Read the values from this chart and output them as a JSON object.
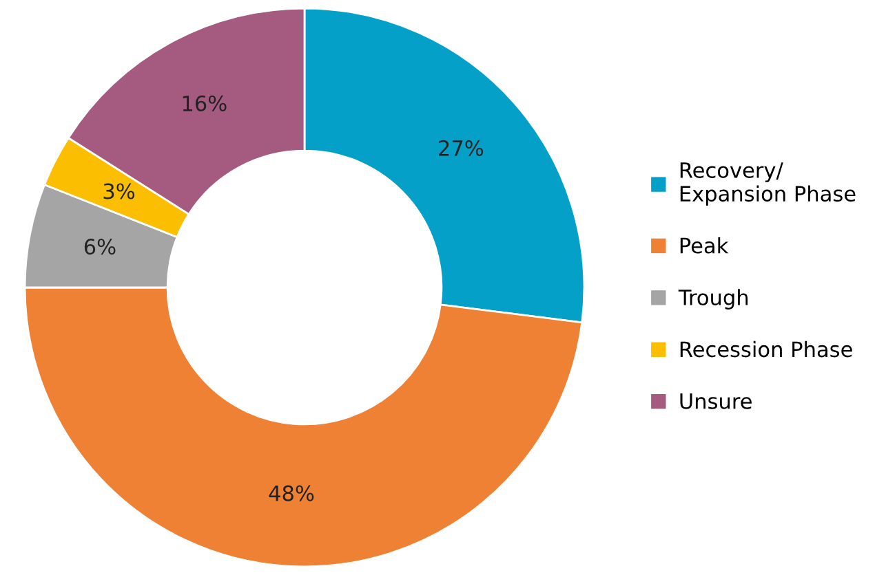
{
  "chart_data": {
    "type": "donut",
    "categories": [
      "Recovery/\nExpansion Phase",
      "Peak",
      "Trough",
      "Recession Phase",
      "Unsure"
    ],
    "values": [
      27,
      48,
      6,
      3,
      16
    ],
    "colors": [
      "#05a0c8",
      "#ee8134",
      "#a5a5a5",
      "#fbbe00",
      "#a55a80"
    ],
    "value_labels": [
      "27%",
      "48%",
      "6%",
      "3%",
      "16%"
    ],
    "legend": "right"
  }
}
